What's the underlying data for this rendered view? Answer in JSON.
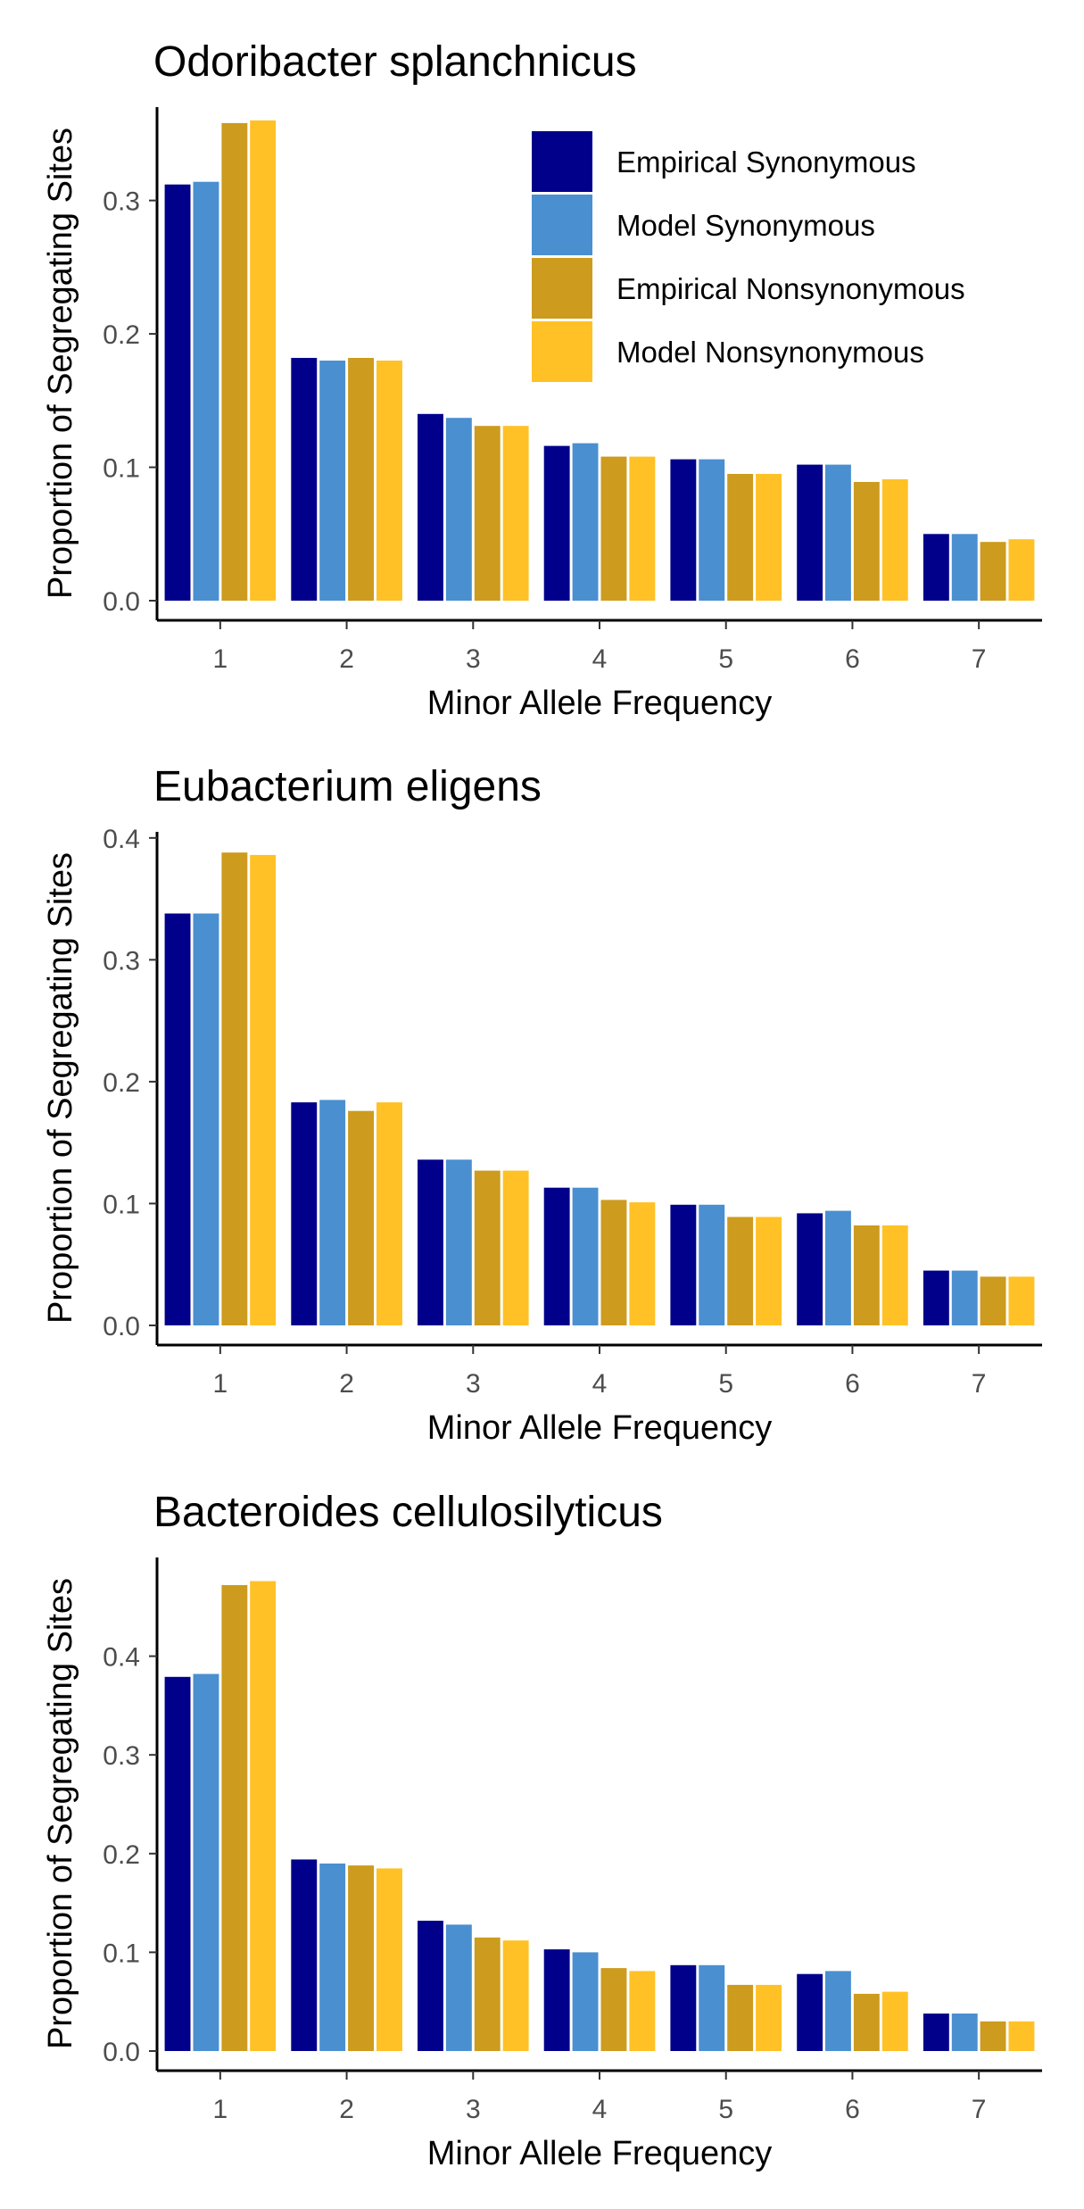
{
  "chart_data": [
    {
      "type": "bar",
      "title": "Odoribacter splanchnicus",
      "xlabel": "Minor Allele Frequency",
      "ylabel": "Proportion of Segregating Sites",
      "categories": [
        "1",
        "2",
        "3",
        "4",
        "5",
        "6",
        "7"
      ],
      "yticks": [
        "0.0",
        "0.1",
        "0.2",
        "0.3"
      ],
      "ylim": [
        0,
        0.37
      ],
      "legend": "top-right",
      "series": [
        {
          "name": "Empirical Synonymous",
          "color": "#00008b",
          "values": [
            0.312,
            0.182,
            0.14,
            0.116,
            0.106,
            0.102,
            0.05
          ]
        },
        {
          "name": "Model Synonymous",
          "color": "#4a8fd0",
          "values": [
            0.314,
            0.18,
            0.137,
            0.118,
            0.106,
            0.102,
            0.05
          ]
        },
        {
          "name": "Empirical Nonsynonymous",
          "color": "#cd9b1d",
          "values": [
            0.358,
            0.182,
            0.131,
            0.108,
            0.095,
            0.089,
            0.044
          ]
        },
        {
          "name": "Model Nonsynonymous",
          "color": "#ffc125",
          "values": [
            0.36,
            0.18,
            0.131,
            0.108,
            0.095,
            0.091,
            0.046
          ]
        }
      ]
    },
    {
      "type": "bar",
      "title": "Eubacterium eligens",
      "xlabel": "Minor Allele Frequency",
      "ylabel": "Proportion of Segregating Sites",
      "categories": [
        "1",
        "2",
        "3",
        "4",
        "5",
        "6",
        "7"
      ],
      "yticks": [
        "0.0",
        "0.1",
        "0.2",
        "0.3",
        "0.4"
      ],
      "ylim": [
        0,
        0.405
      ],
      "series": [
        {
          "name": "Empirical Synonymous",
          "color": "#00008b",
          "values": [
            0.338,
            0.183,
            0.136,
            0.113,
            0.099,
            0.092,
            0.045
          ]
        },
        {
          "name": "Model Synonymous",
          "color": "#4a8fd0",
          "values": [
            0.338,
            0.185,
            0.136,
            0.113,
            0.099,
            0.094,
            0.045
          ]
        },
        {
          "name": "Empirical Nonsynonymous",
          "color": "#cd9b1d",
          "values": [
            0.388,
            0.176,
            0.127,
            0.103,
            0.089,
            0.082,
            0.04
          ]
        },
        {
          "name": "Model Nonsynonymous",
          "color": "#ffc125",
          "values": [
            0.386,
            0.183,
            0.127,
            0.101,
            0.089,
            0.082,
            0.04
          ]
        }
      ]
    },
    {
      "type": "bar",
      "title": "Bacteroides cellulosilyticus",
      "xlabel": "Minor Allele Frequency",
      "ylabel": "Proportion of Segregating Sites",
      "categories": [
        "1",
        "2",
        "3",
        "4",
        "5",
        "6",
        "7"
      ],
      "yticks": [
        "0.0",
        "0.1",
        "0.2",
        "0.3",
        "0.4"
      ],
      "ylim": [
        0,
        0.5
      ],
      "series": [
        {
          "name": "Empirical Synonymous",
          "color": "#00008b",
          "values": [
            0.379,
            0.194,
            0.132,
            0.103,
            0.087,
            0.078,
            0.038
          ]
        },
        {
          "name": "Model Synonymous",
          "color": "#4a8fd0",
          "values": [
            0.382,
            0.19,
            0.128,
            0.1,
            0.087,
            0.081,
            0.038
          ]
        },
        {
          "name": "Empirical Nonsynonymous",
          "color": "#cd9b1d",
          "values": [
            0.472,
            0.188,
            0.115,
            0.084,
            0.067,
            0.058,
            0.03
          ]
        },
        {
          "name": "Model Nonsynonymous",
          "color": "#ffc125",
          "values": [
            0.476,
            0.185,
            0.112,
            0.081,
            0.067,
            0.06,
            0.03
          ]
        }
      ]
    }
  ]
}
